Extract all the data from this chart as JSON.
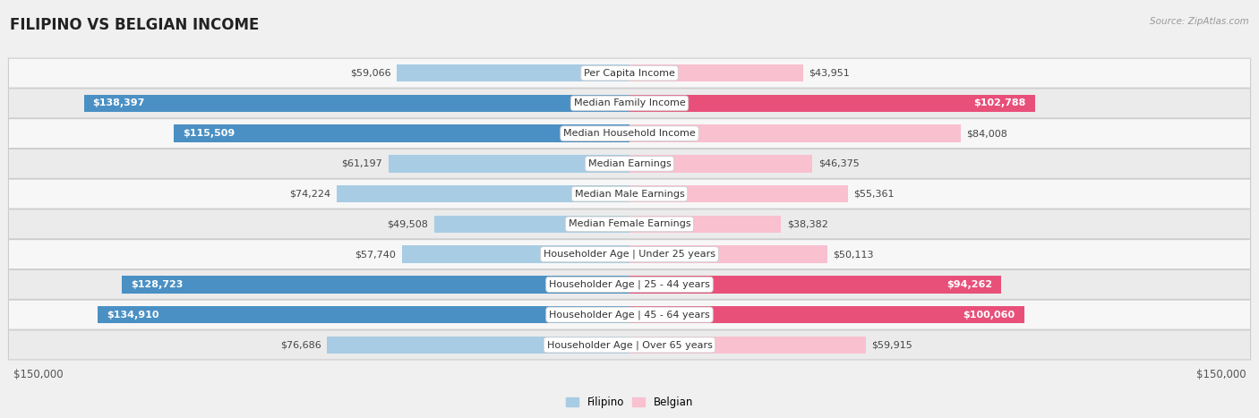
{
  "title": "FILIPINO VS BELGIAN INCOME",
  "source": "Source: ZipAtlas.com",
  "max_value": 150000,
  "categories": [
    "Per Capita Income",
    "Median Family Income",
    "Median Household Income",
    "Median Earnings",
    "Median Male Earnings",
    "Median Female Earnings",
    "Householder Age | Under 25 years",
    "Householder Age | 25 - 44 years",
    "Householder Age | 45 - 64 years",
    "Householder Age | Over 65 years"
  ],
  "filipino_values": [
    59066,
    138397,
    115509,
    61197,
    74224,
    49508,
    57740,
    128723,
    134910,
    76686
  ],
  "belgian_values": [
    43951,
    102788,
    84008,
    46375,
    55361,
    38382,
    50113,
    94262,
    100060,
    59915
  ],
  "filipino_labels": [
    "$59,066",
    "$138,397",
    "$115,509",
    "$61,197",
    "$74,224",
    "$49,508",
    "$57,740",
    "$128,723",
    "$134,910",
    "$76,686"
  ],
  "belgian_labels": [
    "$43,951",
    "$102,788",
    "$84,008",
    "$46,375",
    "$55,361",
    "$38,382",
    "$50,113",
    "$94,262",
    "$100,060",
    "$59,915"
  ],
  "filipino_color_light": "#a8cce4",
  "filipino_color_dark": "#4a90c4",
  "belgian_color_light": "#f9c0d0",
  "belgian_color_dark": "#e8507a",
  "background_color": "#f0f0f0",
  "row_color_odd": "#f7f7f7",
  "row_color_even": "#ebebeb",
  "bar_height": 0.58,
  "title_fontsize": 12,
  "label_fontsize": 8,
  "cat_fontsize": 8,
  "axis_fontsize": 8.5,
  "legend_fontsize": 8.5,
  "inside_label_threshold": 90000
}
